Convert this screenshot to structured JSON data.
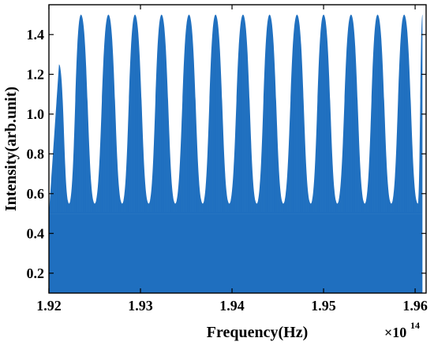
{
  "chart_data": {
    "type": "area",
    "title": "",
    "xlabel": "Frequency(Hz)",
    "ylabel": "Intensity(arb.unit)",
    "x_multiplier": "×10",
    "x_multiplier_exp": "14",
    "xlim": [
      1.92,
      1.9612
    ],
    "ylim": [
      0.1,
      1.55
    ],
    "xticks": [
      "1.92",
      "1.93",
      "1.94",
      "1.95",
      "1.96"
    ],
    "xtick_values": [
      1.92,
      1.93,
      1.94,
      1.95,
      1.96
    ],
    "yticks": [
      "0.2",
      "0.4",
      "0.6",
      "0.8",
      "1.0",
      "1.2",
      "1.4"
    ],
    "ytick_values": [
      0.2,
      0.4,
      0.6,
      0.8,
      1.0,
      1.2,
      1.4
    ],
    "grid": false,
    "series": [
      {
        "color": "#1f6fbf",
        "envelope_peaks": {
          "x": [
            1.9211,
            1.9235,
            1.9265,
            1.9294,
            1.9323,
            1.9353,
            1.9382,
            1.9412,
            1.9441,
            1.9471,
            1.95,
            1.953,
            1.9559,
            1.9588,
            1.9608
          ],
          "y": [
            1.25,
            1.5,
            1.5,
            1.5,
            1.5,
            1.5,
            1.5,
            1.5,
            1.5,
            1.5,
            1.5,
            1.5,
            1.5,
            1.5,
            1.5
          ]
        },
        "envelope_troughs": {
          "x": [
            1.9222,
            1.925,
            1.928,
            1.9309,
            1.9338,
            1.9368,
            1.9397,
            1.9427,
            1.9456,
            1.9486,
            1.9515,
            1.9545,
            1.9574,
            1.9603
          ],
          "y": [
            0.55,
            0.55,
            0.55,
            0.55,
            0.55,
            0.55,
            0.55,
            0.55,
            0.55,
            0.55,
            0.55,
            0.55,
            0.55,
            0.55
          ]
        },
        "baseline": 0.5,
        "fill_to": 0.1
      }
    ]
  }
}
